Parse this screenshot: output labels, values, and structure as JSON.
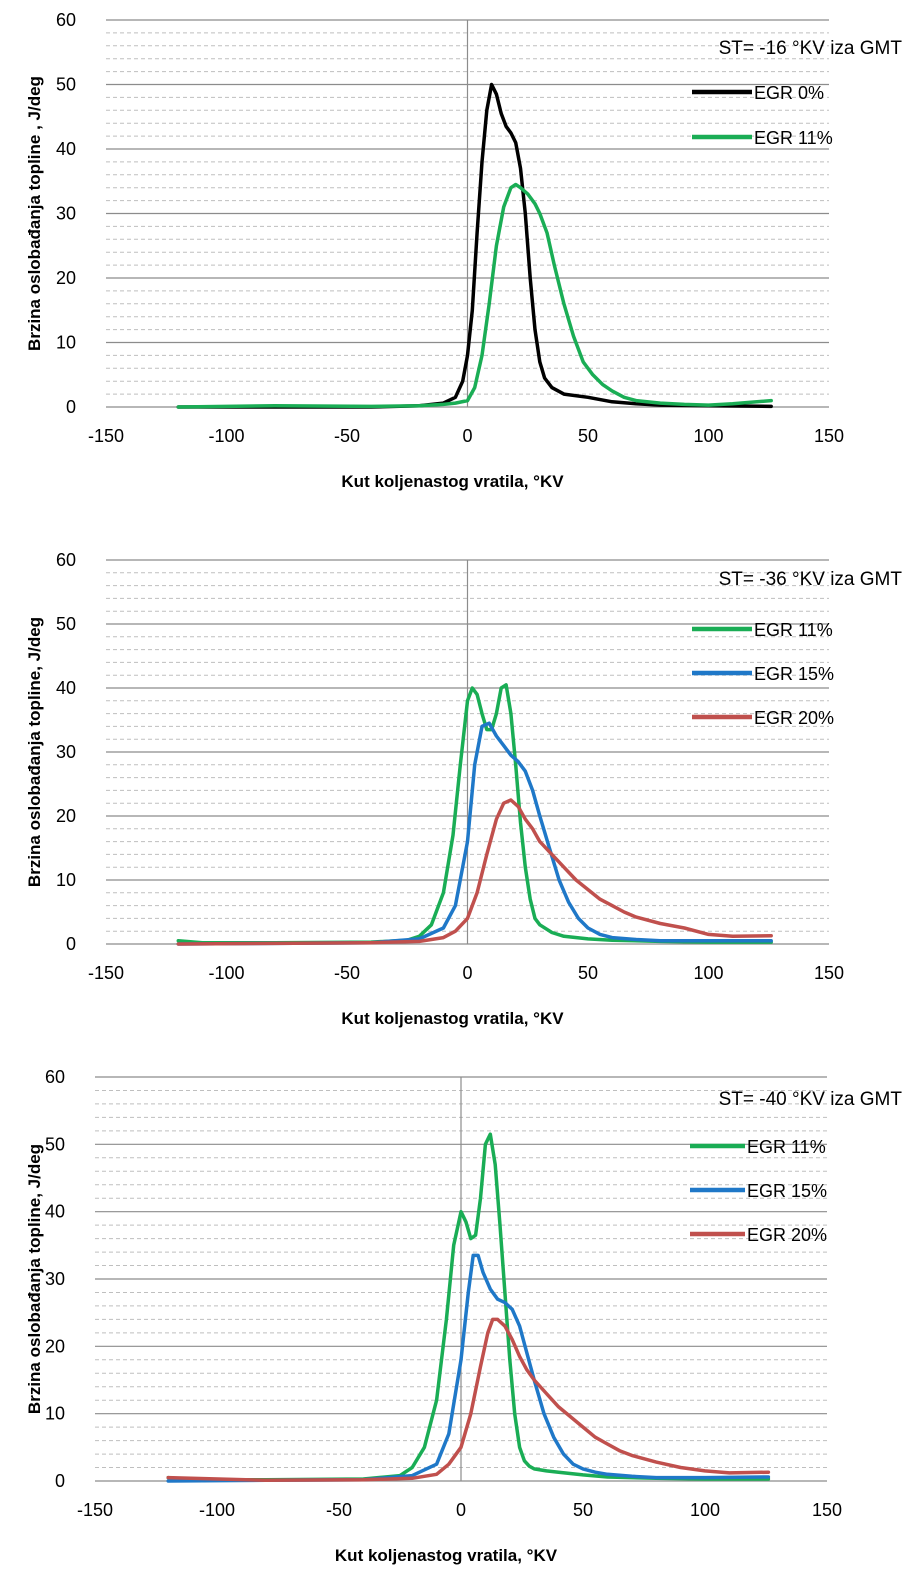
{
  "chart_data": [
    {
      "type": "line",
      "annotation": "ST= -16 °KV iza GMT",
      "xlabel": "Kut koljenastog vratila, °KV",
      "ylabel": "Brzina oslobađanja topline , J/deg",
      "xlim": [
        -150,
        150
      ],
      "ylim": [
        0,
        60
      ],
      "xticks": [
        "-150",
        "-100",
        "-50",
        "0",
        "50",
        "100",
        "150"
      ],
      "yticks": [
        "0",
        "10",
        "20",
        "30",
        "40",
        "50",
        "60"
      ],
      "legend_position": "top-right",
      "grid": "major solid, minor dashed horizontal",
      "series": [
        {
          "name": "EGR 0%",
          "color": "#000000",
          "x": [
            -120,
            -80,
            -40,
            -20,
            -10,
            -5,
            -2,
            0,
            2,
            4,
            6,
            8,
            10,
            12,
            14,
            16,
            18,
            20,
            22,
            24,
            26,
            28,
            30,
            32,
            35,
            40,
            50,
            60,
            70,
            80,
            100,
            126
          ],
          "y": [
            0,
            0,
            0,
            0.2,
            0.6,
            1.5,
            4,
            8,
            15,
            27,
            38,
            46,
            50,
            48.5,
            45.5,
            43.5,
            42.5,
            41,
            37,
            30,
            20,
            12,
            7,
            4.5,
            3,
            2,
            1.5,
            0.8,
            0.5,
            0.3,
            0.2,
            0.1
          ]
        },
        {
          "name": "EGR 11%",
          "color": "#1aad55",
          "x": [
            -120,
            -80,
            -40,
            -20,
            -10,
            -5,
            0,
            3,
            6,
            9,
            12,
            15,
            18,
            20,
            22,
            25,
            28,
            30,
            33,
            36,
            40,
            44,
            48,
            52,
            56,
            60,
            65,
            70,
            80,
            90,
            100,
            110,
            126
          ],
          "y": [
            0,
            0.2,
            0.1,
            0.2,
            0.4,
            0.6,
            1,
            3,
            8,
            16,
            25,
            31,
            34,
            34.5,
            34,
            33,
            31.5,
            30,
            27,
            22,
            16,
            11,
            7,
            5,
            3.5,
            2.5,
            1.5,
            1,
            0.6,
            0.4,
            0.3,
            0.5,
            1
          ]
        }
      ]
    },
    {
      "type": "line",
      "annotation": "ST= -36 °KV iza GMT",
      "xlabel": "Kut koljenastog vratila, °KV",
      "ylabel": "Brzina oslobađanja topline, J/deg",
      "xlim": [
        -150,
        150
      ],
      "ylim": [
        0,
        60
      ],
      "xticks": [
        "-150",
        "-100",
        "-50",
        "0",
        "50",
        "100",
        "150"
      ],
      "yticks": [
        "0",
        "10",
        "20",
        "30",
        "40",
        "50",
        "60"
      ],
      "legend_position": "top-right",
      "grid": "major solid, minor dashed horizontal",
      "series": [
        {
          "name": "EGR 11%",
          "color": "#1aad55",
          "x": [
            -120,
            -110,
            -80,
            -40,
            -25,
            -20,
            -15,
            -10,
            -6,
            -3,
            0,
            2,
            4,
            6,
            8,
            10,
            12,
            14,
            16,
            18,
            20,
            22,
            24,
            26,
            28,
            30,
            35,
            40,
            50,
            60,
            80,
            100,
            126
          ],
          "y": [
            0.5,
            0.2,
            0.2,
            0.3,
            0.6,
            1.2,
            3,
            8,
            17,
            28,
            38,
            40,
            39,
            36,
            33.5,
            33.5,
            36,
            40,
            40.5,
            36,
            28,
            19,
            12,
            7,
            4,
            3,
            1.8,
            1.2,
            0.8,
            0.6,
            0.4,
            0.3,
            0.3
          ]
        },
        {
          "name": "EGR 15%",
          "color": "#1f78c8",
          "x": [
            -120,
            -80,
            -40,
            -20,
            -10,
            -5,
            0,
            3,
            6,
            9,
            12,
            15,
            18,
            21,
            24,
            27,
            30,
            34,
            38,
            42,
            46,
            50,
            55,
            60,
            70,
            80,
            90,
            100,
            126
          ],
          "y": [
            0,
            0.1,
            0.2,
            0.8,
            2.5,
            6,
            16,
            28,
            34,
            34.5,
            32.5,
            31,
            29.5,
            28.5,
            27,
            24,
            20,
            15,
            10,
            6.5,
            4,
            2.5,
            1.5,
            1,
            0.7,
            0.5,
            0.5,
            0.5,
            0.5
          ]
        },
        {
          "name": "EGR 20%",
          "color": "#c0504d",
          "x": [
            -120,
            -80,
            -40,
            -20,
            -10,
            -5,
            0,
            4,
            8,
            12,
            15,
            18,
            21,
            24,
            27,
            30,
            35,
            40,
            45,
            50,
            55,
            60,
            65,
            70,
            80,
            90,
            100,
            110,
            126
          ],
          "y": [
            0,
            0.1,
            0.2,
            0.4,
            1,
            2,
            4,
            8,
            14,
            19.5,
            22,
            22.5,
            21.5,
            19.5,
            18,
            16,
            14,
            12,
            10,
            8.5,
            7,
            6,
            5,
            4.2,
            3.2,
            2.5,
            1.5,
            1.2,
            1.3
          ]
        }
      ]
    },
    {
      "type": "line",
      "annotation": "ST= -40 °KV iza GMT",
      "xlabel": "Kut koljenastog vratila, °KV",
      "ylabel": "Brzina oslobađanja topline, J/deg",
      "xlim": [
        -150,
        150
      ],
      "ylim": [
        0,
        60
      ],
      "xticks": [
        "-150",
        "-100",
        "-50",
        "0",
        "50",
        "100",
        "150"
      ],
      "yticks": [
        "0",
        "10",
        "20",
        "30",
        "40",
        "50",
        "60"
      ],
      "legend_position": "top-right",
      "grid": "major solid, minor dashed horizontal",
      "series": [
        {
          "name": "EGR 11%",
          "color": "#1aad55",
          "x": [
            -120,
            -110,
            -80,
            -40,
            -25,
            -20,
            -15,
            -10,
            -6,
            -3,
            0,
            2,
            4,
            6,
            8,
            10,
            12,
            14,
            16,
            18,
            20,
            22,
            24,
            26,
            28,
            30,
            35,
            40,
            50,
            60,
            80,
            100,
            126
          ],
          "y": [
            0.5,
            0.2,
            0.2,
            0.3,
            0.8,
            2,
            5,
            12,
            24,
            35,
            40,
            38.5,
            36,
            36.5,
            42,
            50,
            51.5,
            47,
            38,
            28,
            18,
            10,
            5,
            3,
            2.2,
            1.8,
            1.5,
            1.3,
            0.9,
            0.6,
            0.4,
            0.3,
            0.3
          ]
        },
        {
          "name": "EGR 15%",
          "color": "#1f78c8",
          "x": [
            -120,
            -80,
            -40,
            -20,
            -10,
            -5,
            0,
            3,
            5,
            7,
            9,
            12,
            15,
            18,
            21,
            24,
            27,
            30,
            34,
            38,
            42,
            46,
            50,
            55,
            60,
            70,
            80,
            90,
            100,
            126
          ],
          "y": [
            0,
            0.1,
            0.2,
            0.8,
            2.5,
            7,
            18,
            28,
            33.5,
            33.5,
            31,
            28.5,
            27,
            26.5,
            25.5,
            23,
            19,
            15,
            10,
            6.5,
            4,
            2.5,
            1.8,
            1.3,
            1,
            0.7,
            0.5,
            0.5,
            0.5,
            0.6
          ]
        },
        {
          "name": "EGR 20%",
          "color": "#c0504d",
          "x": [
            -120,
            -80,
            -40,
            -20,
            -10,
            -5,
            0,
            4,
            8,
            11,
            13,
            15,
            18,
            21,
            24,
            27,
            30,
            35,
            40,
            45,
            50,
            55,
            60,
            65,
            70,
            80,
            90,
            100,
            110,
            126
          ],
          "y": [
            0.5,
            0.1,
            0.2,
            0.4,
            1,
            2.5,
            5,
            10,
            17,
            22,
            24,
            24,
            23,
            21,
            18.5,
            16.5,
            15,
            13,
            11,
            9.5,
            8,
            6.5,
            5.5,
            4.5,
            3.8,
            2.8,
            2,
            1.5,
            1.2,
            1.3
          ]
        }
      ]
    }
  ]
}
